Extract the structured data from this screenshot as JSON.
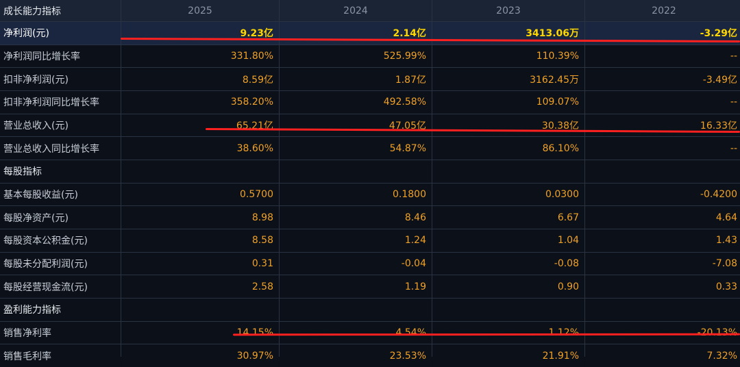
{
  "header": {
    "title": "成长能力指标",
    "years": [
      "2025",
      "2024",
      "2023",
      "2022"
    ]
  },
  "rows": [
    {
      "label": "净利润(元)",
      "values": [
        "9.23亿",
        "2.14亿",
        "3413.06万",
        "-3.29亿"
      ]
    },
    {
      "label": "净利润同比增长率",
      "values": [
        "331.80%",
        "525.99%",
        "110.39%",
        "--"
      ]
    },
    {
      "label": "扣非净利润(元)",
      "values": [
        "8.59亿",
        "1.87亿",
        "3162.45万",
        "-3.49亿"
      ]
    },
    {
      "label": "扣非净利润同比增长率",
      "values": [
        "358.20%",
        "492.58%",
        "109.07%",
        "--"
      ]
    },
    {
      "label": "营业总收入(元)",
      "values": [
        "65.21亿",
        "47.05亿",
        "30.38亿",
        "16.33亿"
      ]
    },
    {
      "label": "营业总收入同比增长率",
      "values": [
        "38.60%",
        "54.87%",
        "86.10%",
        "--"
      ]
    },
    {
      "label": "每股指标",
      "values": [
        "",
        "",
        "",
        ""
      ]
    },
    {
      "label": "基本每股收益(元)",
      "values": [
        "0.5700",
        "0.1800",
        "0.0300",
        "-0.4200"
      ]
    },
    {
      "label": "每股净资产(元)",
      "values": [
        "8.98",
        "8.46",
        "6.67",
        "4.64"
      ]
    },
    {
      "label": "每股资本公积金(元)",
      "values": [
        "8.58",
        "1.24",
        "1.04",
        "1.43"
      ]
    },
    {
      "label": "每股未分配利润(元)",
      "values": [
        "0.31",
        "-0.04",
        "-0.08",
        "-7.08"
      ]
    },
    {
      "label": "每股经营现金流(元)",
      "values": [
        "2.58",
        "1.19",
        "0.90",
        "0.33"
      ]
    },
    {
      "label": "盈利能力指标",
      "values": [
        "",
        "",
        "",
        ""
      ]
    },
    {
      "label": "销售净利率",
      "values": [
        "14.15%",
        "4.54%",
        "1.12%",
        "-20.13%"
      ]
    },
    {
      "label": "销售毛利率",
      "values": [
        "30.97%",
        "23.53%",
        "21.91%",
        "7.32%"
      ]
    }
  ],
  "colors": {
    "value": "#f2a227",
    "emphasis": "#ffd700",
    "underline": "#ff2020",
    "header_bg": "#1b2434",
    "row_bg": "#0b1019"
  }
}
